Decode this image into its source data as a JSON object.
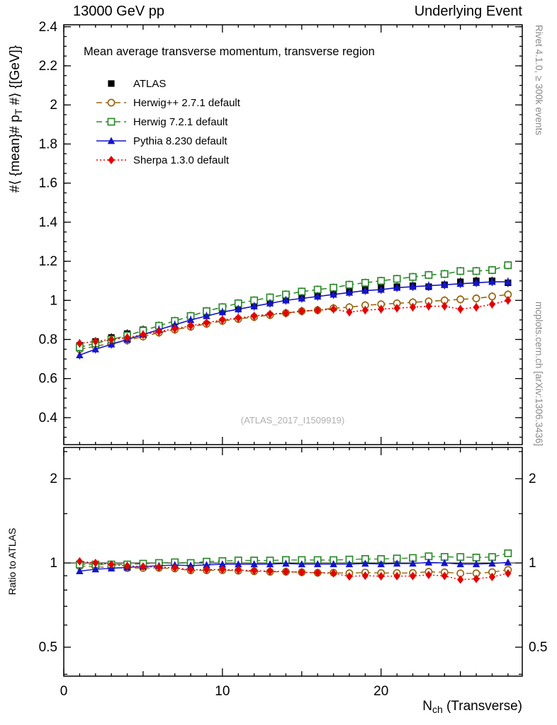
{
  "header": {
    "left": "13000 GeV pp",
    "right": "Underlying Event"
  },
  "right_margin": {
    "top_note": "Rivet 4.1.0, ≥ 300k events",
    "bottom_note": "mcplots.cern.ch [arXiv:1306.3436]"
  },
  "watermark": "(ATLAS_2017_I1509919)",
  "chart_data": {
    "type": "line",
    "title": "Mean average transverse momentum, transverse region",
    "xlabel": {
      "pre": "N",
      "sub": "ch",
      "post": " (Transverse)"
    },
    "ylabel": {
      "pre": "#⟨ {mean}# p",
      "sub": "T",
      "post": " #⟩ {[GeV]}"
    },
    "ratio_label": "Ratio to ATLAS",
    "x_range": [
      0,
      28.9
    ],
    "x_ticks_major": [
      0,
      10,
      20
    ],
    "y_range": [
      0.262,
      2.41
    ],
    "y_ticks": [
      {
        "v": 0.4,
        "label": "0.4"
      },
      {
        "v": 0.6,
        "label": "0.6"
      },
      {
        "v": 0.8,
        "label": "0.8"
      },
      {
        "v": 1.0,
        "label": "1"
      },
      {
        "v": 1.2,
        "label": "1.2"
      },
      {
        "v": 1.4,
        "label": "1.4"
      },
      {
        "v": 1.6,
        "label": "1.6"
      },
      {
        "v": 1.8,
        "label": "1.8"
      },
      {
        "v": 2.0,
        "label": "2"
      },
      {
        "v": 2.2,
        "label": "2.2"
      },
      {
        "v": 2.4,
        "label": "2.4"
      }
    ],
    "ratio_scale": "log",
    "ratio_range": [
      0.394,
      2.586
    ],
    "ratio_ticks": [
      {
        "v": 0.5,
        "label": "0.5"
      },
      {
        "v": 1,
        "label": "1"
      },
      {
        "v": 2,
        "label": "2"
      }
    ],
    "ratio_minor_ticks": [
      0.4,
      0.6,
      0.7,
      0.8,
      0.9,
      1.5,
      2.5
    ],
    "x": [
      1,
      2,
      3,
      4,
      5,
      6,
      7,
      8,
      9,
      10,
      11,
      12,
      13,
      14,
      15,
      16,
      17,
      18,
      19,
      20,
      21,
      22,
      23,
      24,
      25,
      26,
      27,
      28
    ],
    "series": [
      {
        "name": "ATLAS",
        "color": "#000000",
        "marker": "square-filled",
        "line": "none",
        "values": [
          0.77,
          0.79,
          0.81,
          0.83,
          0.85,
          0.87,
          0.89,
          0.92,
          0.935,
          0.95,
          0.965,
          0.98,
          0.995,
          1.005,
          1.02,
          1.03,
          1.04,
          1.05,
          1.055,
          1.065,
          1.07,
          1.075,
          1.07,
          1.08,
          1.095,
          1.1,
          1.1,
          1.09
        ]
      },
      {
        "name": "Herwig++ 2.7.1 default",
        "color": "#996611",
        "marker": "circle-open",
        "line": "dashed",
        "values": [
          0.75,
          0.765,
          0.78,
          0.795,
          0.815,
          0.835,
          0.85,
          0.865,
          0.88,
          0.895,
          0.905,
          0.915,
          0.925,
          0.935,
          0.945,
          0.95,
          0.96,
          0.965,
          0.975,
          0.98,
          0.985,
          0.99,
          0.995,
          1.0,
          1.005,
          1.01,
          1.02,
          1.03
        ]
      },
      {
        "name": "Herwig 7.2.1 default",
        "color": "#2e8b2e",
        "marker": "square-open",
        "line": "dashed",
        "values": [
          0.76,
          0.78,
          0.8,
          0.82,
          0.845,
          0.87,
          0.895,
          0.92,
          0.945,
          0.965,
          0.985,
          1.0,
          1.015,
          1.03,
          1.045,
          1.055,
          1.065,
          1.08,
          1.09,
          1.1,
          1.11,
          1.12,
          1.13,
          1.135,
          1.15,
          1.15,
          1.155,
          1.18
        ]
      },
      {
        "name": "Pythia 8.230 default",
        "color": "#1414cc",
        "marker": "triangle-filled",
        "line": "solid",
        "values": [
          0.72,
          0.75,
          0.775,
          0.8,
          0.825,
          0.85,
          0.875,
          0.9,
          0.92,
          0.94,
          0.955,
          0.97,
          0.985,
          1.0,
          1.01,
          1.02,
          1.03,
          1.04,
          1.05,
          1.055,
          1.065,
          1.07,
          1.075,
          1.08,
          1.085,
          1.09,
          1.095,
          1.095
        ]
      },
      {
        "name": "Sherpa 1.3.0 default",
        "color": "#e60000",
        "marker": "diamond-filled",
        "line": "dotted",
        "values": [
          0.78,
          0.79,
          0.8,
          0.81,
          0.825,
          0.84,
          0.855,
          0.87,
          0.885,
          0.9,
          0.91,
          0.92,
          0.93,
          0.935,
          0.945,
          0.95,
          0.955,
          0.94,
          0.95,
          0.955,
          0.96,
          0.965,
          0.97,
          0.97,
          0.955,
          0.965,
          0.98,
          1.0
        ]
      }
    ]
  }
}
